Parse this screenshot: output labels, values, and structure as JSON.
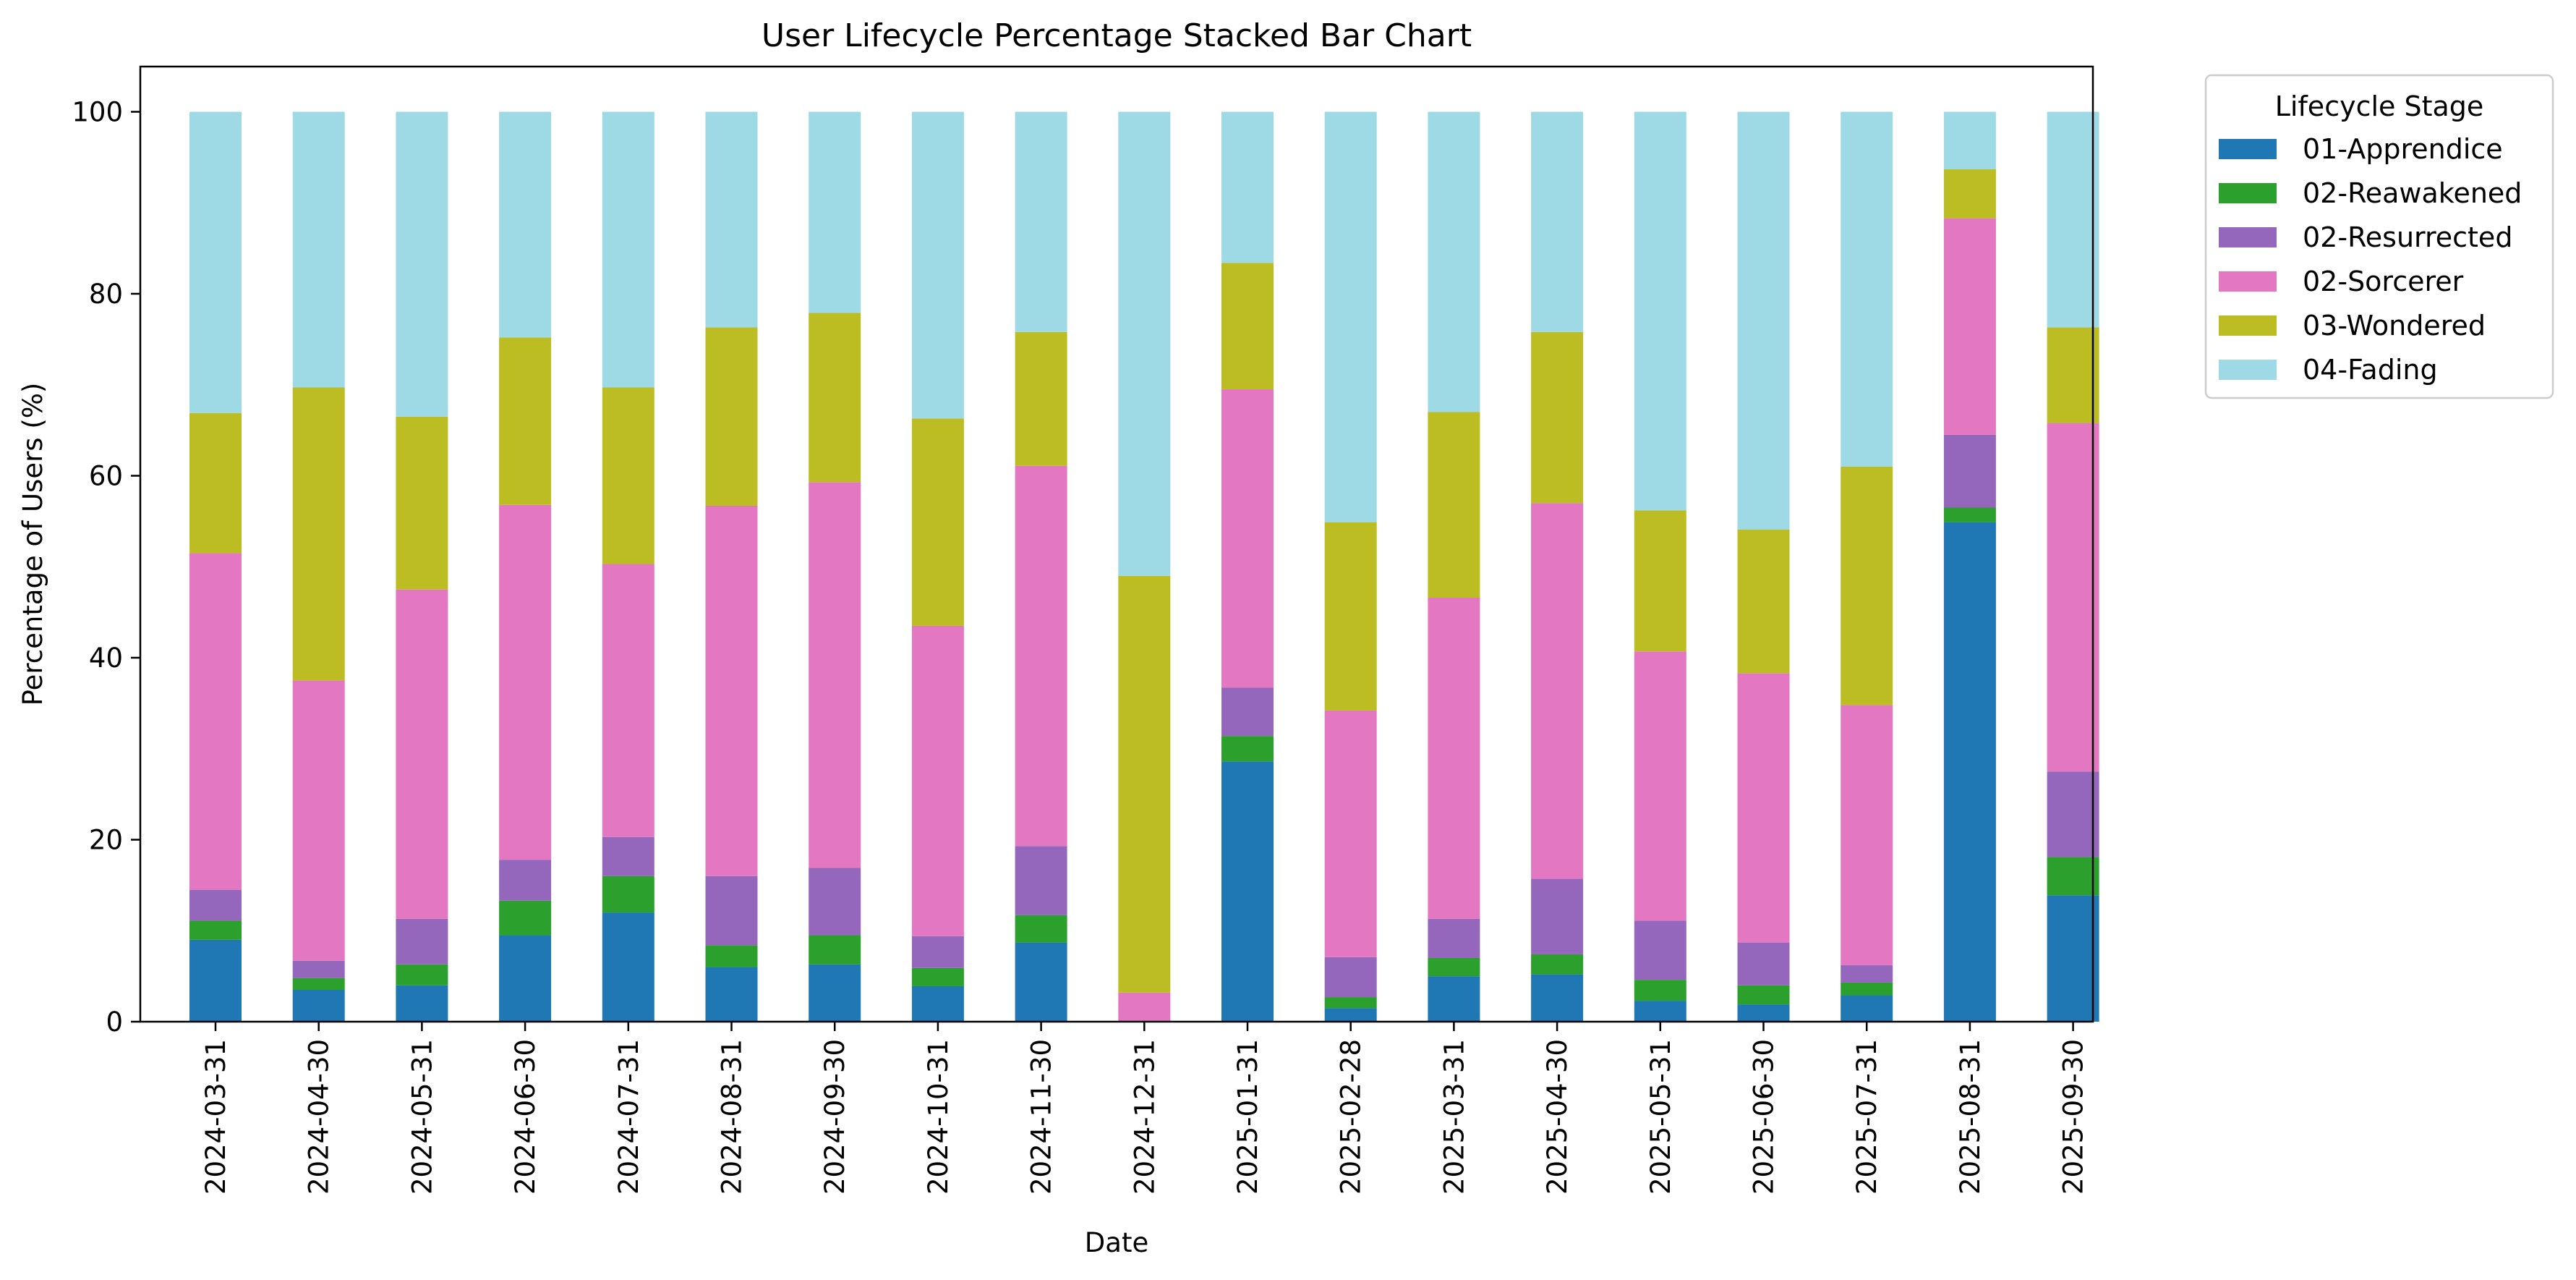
{
  "chart_data": {
    "type": "bar",
    "stacked": true,
    "title": "User Lifecycle Percentage Stacked Bar Chart",
    "xlabel": "Date",
    "ylabel": "Percentage of Users (%)",
    "ylim": [
      0,
      105
    ],
    "yticks": [
      "0",
      "20",
      "40",
      "60",
      "80",
      "100"
    ],
    "grid": false,
    "legend": {
      "title": "Lifecycle Stage",
      "placement": "outside-top-right"
    },
    "categories": [
      "2024-03-31",
      "2024-04-30",
      "2024-05-31",
      "2024-06-30",
      "2024-07-31",
      "2024-08-31",
      "2024-09-30",
      "2024-10-31",
      "2024-11-30",
      "2024-12-31",
      "2025-01-31",
      "2025-02-28",
      "2025-03-31",
      "2025-04-30",
      "2025-05-31",
      "2025-06-30",
      "2025-07-31",
      "2025-08-31",
      "2025-09-30"
    ],
    "series": [
      {
        "name": "01-Apprendice",
        "color": "#1f77b4",
        "values": [
          9.0,
          3.5,
          4.0,
          9.5,
          12.0,
          6.0,
          6.3,
          3.9,
          8.7,
          0.0,
          28.6,
          1.5,
          5.0,
          5.2,
          2.3,
          1.9,
          2.9,
          54.9,
          13.9
        ]
      },
      {
        "name": "02-Reawakened",
        "color": "#2ca02c",
        "values": [
          2.1,
          1.3,
          2.3,
          3.8,
          4.0,
          2.4,
          3.2,
          2.0,
          3.0,
          0.0,
          2.8,
          1.2,
          2.0,
          2.2,
          2.3,
          2.1,
          1.4,
          1.6,
          4.2
        ]
      },
      {
        "name": "02-Resurrected",
        "color": "#9467bd",
        "values": [
          3.4,
          1.9,
          5.0,
          4.5,
          4.3,
          7.6,
          7.4,
          3.5,
          7.6,
          0.0,
          5.3,
          4.4,
          4.3,
          8.3,
          6.5,
          4.7,
          1.9,
          8.0,
          9.4
        ]
      },
      {
        "name": "02-Sorcerer",
        "color": "#e377c2",
        "values": [
          37.0,
          30.8,
          36.2,
          39.0,
          30.0,
          40.7,
          42.4,
          34.1,
          41.8,
          3.2,
          32.8,
          27.1,
          35.3,
          41.3,
          29.6,
          29.6,
          28.6,
          23.8,
          38.3
        ]
      },
      {
        "name": "03-Wondered",
        "color": "#bcbd22",
        "values": [
          15.4,
          32.2,
          19.0,
          18.4,
          19.4,
          19.6,
          18.6,
          22.8,
          14.7,
          45.8,
          13.9,
          20.7,
          20.4,
          18.8,
          15.5,
          15.8,
          26.2,
          5.4,
          10.5
        ]
      },
      {
        "name": "04-Fading",
        "color": "#9edae5",
        "values": [
          33.1,
          30.3,
          33.5,
          24.8,
          30.3,
          23.7,
          22.1,
          33.7,
          24.2,
          51.0,
          16.6,
          45.1,
          33.0,
          24.2,
          43.8,
          45.9,
          39.0,
          6.3,
          23.7
        ]
      }
    ]
  }
}
